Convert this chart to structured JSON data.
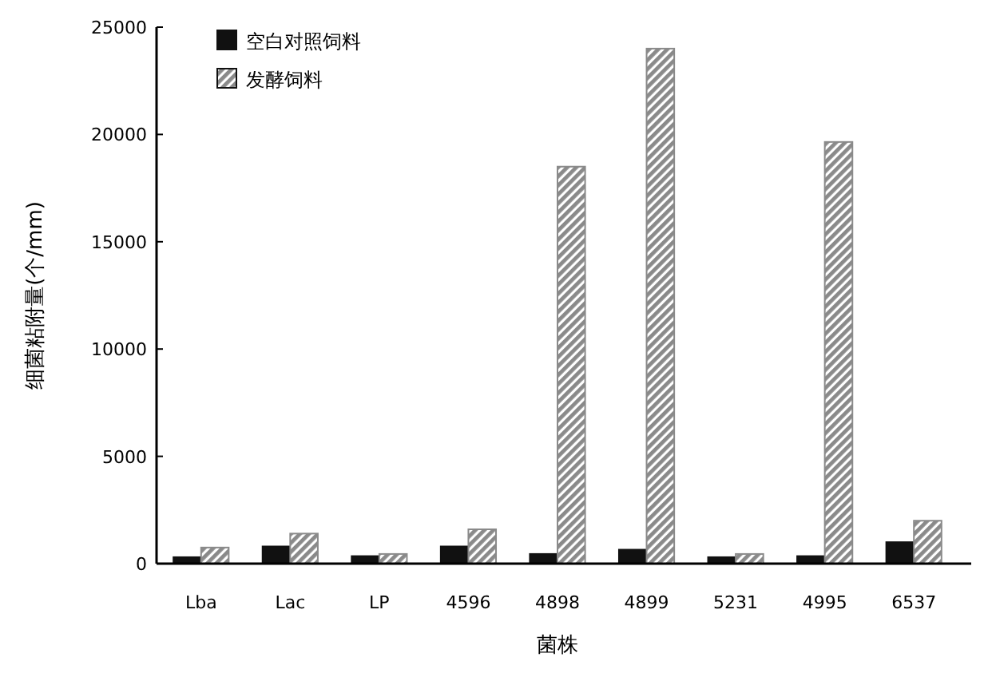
{
  "chart_data": {
    "type": "bar",
    "xlabel": "菌株",
    "ylabel": "细菌粘附量(个/mm)",
    "categories": [
      "Lba",
      "Lac",
      "LP",
      "4596",
      "4898",
      "4899",
      "5231",
      "4995",
      "6537"
    ],
    "series": [
      {
        "name": "空白对照饲料",
        "color": "#111111",
        "values": [
          300,
          800,
          350,
          800,
          450,
          650,
          300,
          350,
          1000
        ]
      },
      {
        "name": "发酵饲料",
        "color": "#8a8a8a",
        "values": [
          750,
          1400,
          450,
          1600,
          18500,
          24000,
          450,
          19650,
          2000
        ]
      }
    ],
    "ylim": [
      0,
      25000
    ],
    "yticks": [
      0,
      5000,
      10000,
      15000,
      20000,
      25000
    ],
    "legend": "top left"
  }
}
